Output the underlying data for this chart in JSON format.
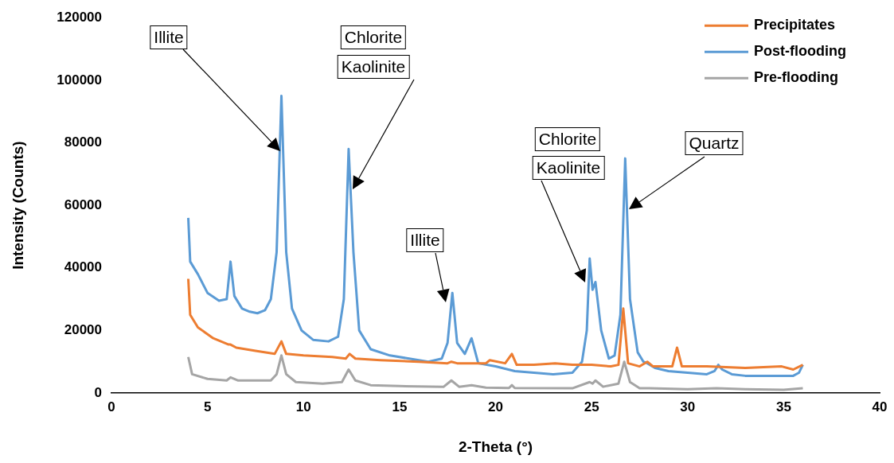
{
  "chart_data": {
    "type": "line",
    "xlabel": "2-Theta (°)",
    "ylabel": "Intensity (Counts)",
    "xlim": [
      0,
      40
    ],
    "xticks": [
      0,
      5,
      10,
      15,
      20,
      25,
      30,
      35,
      40
    ],
    "ylim": [
      0,
      120000
    ],
    "yticks": [
      0,
      20000,
      40000,
      60000,
      80000,
      100000,
      120000
    ],
    "grid": false,
    "legend": "top right",
    "marker": "none",
    "line_style": "solid",
    "series": [
      {
        "name": "Precipitates",
        "color": "#ed7d31",
        "x": [
          4,
          4.1,
          4.5,
          5.3,
          6.1,
          6.2,
          6.5,
          7.5,
          8.5,
          8.85,
          9.1,
          10,
          11.5,
          12.2,
          12.4,
          12.7,
          14,
          16,
          17.5,
          17.7,
          18,
          19.5,
          19.7,
          20.5,
          20.85,
          21.1,
          22,
          23.1,
          24,
          25,
          26,
          26.4,
          26.65,
          26.9,
          27.5,
          27.9,
          28.2,
          29.2,
          29.45,
          29.7,
          31,
          33,
          34.9,
          35.5,
          36
        ],
        "values": [
          36500,
          25000,
          21000,
          17500,
          15500,
          15500,
          14500,
          13500,
          12500,
          16500,
          12500,
          12000,
          11500,
          11000,
          12500,
          11000,
          10500,
          10000,
          9500,
          10000,
          9500,
          9500,
          10500,
          9500,
          12500,
          9000,
          9000,
          9500,
          9000,
          9000,
          8500,
          9000,
          27000,
          9500,
          8500,
          10000,
          8500,
          8500,
          14500,
          8500,
          8500,
          8000,
          8500,
          7500,
          9000
        ]
      },
      {
        "name": "Post-flooding",
        "color": "#5b9bd5",
        "x": [
          4,
          4.1,
          4.5,
          5,
          5.6,
          6,
          6.2,
          6.4,
          6.8,
          7.2,
          7.6,
          8,
          8.3,
          8.6,
          8.85,
          9.1,
          9.4,
          9.9,
          10.5,
          11.3,
          11.8,
          12.1,
          12.35,
          12.6,
          12.9,
          13.5,
          14.5,
          15.5,
          16.5,
          17.2,
          17.5,
          17.75,
          18,
          18.4,
          18.75,
          19.1,
          20,
          21,
          22,
          23,
          24,
          24.5,
          24.75,
          24.9,
          25.05,
          25.2,
          25.5,
          25.9,
          26.2,
          26.5,
          26.75,
          27,
          27.4,
          27.7,
          27.9,
          28.3,
          29,
          30,
          31,
          31.4,
          31.6,
          31.8,
          32.3,
          33,
          35.5,
          35.8,
          36
        ],
        "values": [
          56000,
          42000,
          38000,
          32000,
          29500,
          30000,
          42000,
          31000,
          27000,
          26000,
          25500,
          26500,
          30000,
          45000,
          95000,
          45000,
          27000,
          20000,
          17000,
          16500,
          18000,
          30000,
          78000,
          45000,
          20000,
          14000,
          12000,
          11000,
          10000,
          11000,
          16000,
          32000,
          16000,
          12500,
          17500,
          9500,
          8500,
          7000,
          6500,
          6000,
          6500,
          10000,
          20000,
          43000,
          33000,
          35500,
          20000,
          11000,
          12000,
          25000,
          75000,
          30000,
          13000,
          10000,
          9500,
          8000,
          7000,
          6500,
          6000,
          7000,
          9000,
          7500,
          6000,
          5500,
          5500,
          6500,
          9000
        ]
      },
      {
        "name": "Pre-flooding",
        "color": "#a5a5a5",
        "x": [
          4,
          4.2,
          5,
          6,
          6.2,
          6.6,
          8.3,
          8.6,
          8.85,
          9.1,
          9.6,
          11,
          12,
          12.35,
          12.7,
          13.5,
          15,
          17.3,
          17.7,
          18.1,
          18.75,
          19.5,
          20.7,
          20.85,
          21,
          24,
          24.9,
          25.05,
          25.2,
          25.6,
          26.4,
          26.7,
          27,
          27.5,
          28,
          30,
          31.5,
          33,
          35,
          36
        ],
        "values": [
          11500,
          6000,
          4500,
          4000,
          5000,
          4000,
          4000,
          6000,
          12000,
          6000,
          3500,
          3000,
          3500,
          7500,
          4000,
          2500,
          2200,
          2000,
          4000,
          2000,
          2500,
          1700,
          1600,
          2500,
          1600,
          1500,
          3500,
          3000,
          4000,
          2000,
          3000,
          10000,
          3500,
          1500,
          1500,
          1200,
          1500,
          1200,
          1000,
          1500
        ]
      }
    ],
    "annotations": [
      "Illite",
      "Chlorite",
      "Kaolinite",
      "Illite",
      "Chlorite",
      "Kaolinite",
      "Quartz"
    ]
  }
}
